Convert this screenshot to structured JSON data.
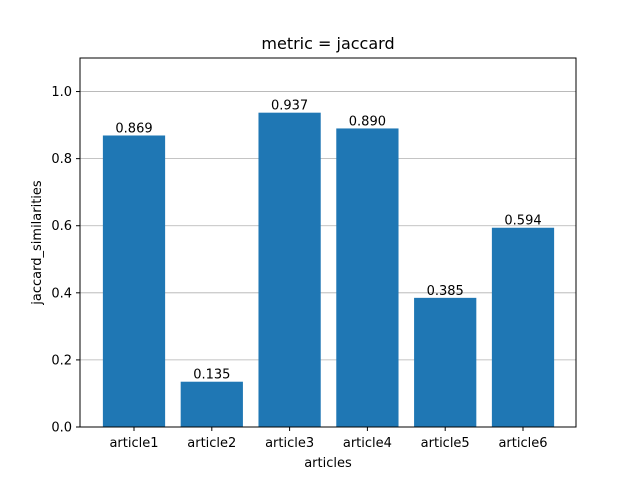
{
  "chart_data": {
    "type": "bar",
    "title": "metric = jaccard",
    "xlabel": "articles",
    "ylabel": "jaccard_similarities",
    "categories": [
      "article1",
      "article2",
      "article3",
      "article4",
      "article5",
      "article6"
    ],
    "values": [
      0.869,
      0.135,
      0.937,
      0.89,
      0.385,
      0.594
    ],
    "value_labels": [
      "0.869",
      "0.135",
      "0.937",
      "0.890",
      "0.385",
      "0.594"
    ],
    "ylim": [
      0,
      1.1
    ],
    "yticks": [
      0.0,
      0.2,
      0.4,
      0.6,
      0.8,
      1.0
    ],
    "ytick_labels": [
      "0.0",
      "0.2",
      "0.4",
      "0.6",
      "0.8",
      "1.0"
    ],
    "grid": "y-axis",
    "legend": "none",
    "bar_color": "#1f77b4",
    "grid_color": "#b0b0b0"
  }
}
